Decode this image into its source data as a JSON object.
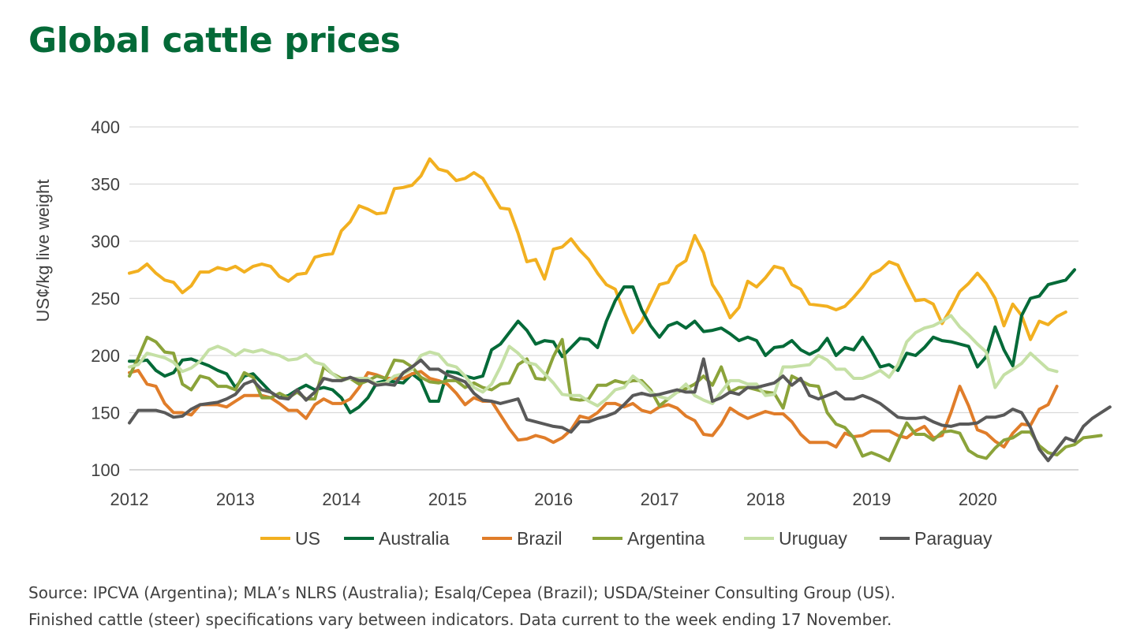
{
  "page": {
    "title": "Global cattle prices"
  },
  "source": {
    "line1": "Source: IPCVA (Argentina); MLA’s NLRS (Australia); Esalq/Cepea (Brazil); USDA/Steiner Consulting Group (US).",
    "line2": "Finished cattle (steer) specifications vary between indicators. Data current to the week ending 17 November."
  },
  "chart_data": {
    "type": "line",
    "title": "Global cattle prices",
    "xlabel": "",
    "ylabel": "US¢/kg live weight",
    "ylim": [
      100,
      400
    ],
    "xlim": [
      2012,
      2020.95
    ],
    "yticks": [
      100,
      150,
      200,
      250,
      300,
      350,
      400
    ],
    "xticks": [
      2012,
      2013,
      2014,
      2015,
      2016,
      2017,
      2018,
      2019,
      2020
    ],
    "grid": "horizontal",
    "legend_position": "bottom",
    "x_step": 0.0833,
    "series": [
      {
        "name": "US",
        "color": "#f2b020",
        "values": [
          272,
          274,
          280,
          272,
          266,
          264,
          255,
          261,
          273,
          273,
          277,
          275,
          278,
          273,
          278,
          280,
          278,
          269,
          265,
          271,
          272,
          286,
          288,
          289,
          309,
          317,
          331,
          328,
          324,
          325,
          346,
          347,
          349,
          357,
          372,
          363,
          361,
          353,
          355,
          360,
          355,
          342,
          329,
          328,
          307,
          282,
          284,
          267,
          293,
          295,
          302,
          292,
          284,
          272,
          262,
          258,
          238,
          220,
          230,
          246,
          262,
          264,
          278,
          283,
          305,
          290,
          262,
          250,
          233,
          242,
          265,
          260,
          268,
          278,
          276,
          262,
          258,
          245,
          244,
          243,
          240,
          243,
          251,
          260,
          271,
          275,
          282,
          279,
          263,
          248,
          249,
          245,
          228,
          241,
          256,
          263,
          272,
          263,
          250,
          226,
          245,
          235,
          214,
          230,
          227,
          234,
          238
        ]
      },
      {
        "name": "Australia",
        "color": "#046a38",
        "values": [
          195,
          195,
          196,
          187,
          182,
          185,
          196,
          197,
          194,
          191,
          187,
          184,
          172,
          182,
          184,
          176,
          168,
          163,
          165,
          170,
          174,
          170,
          172,
          170,
          163,
          150,
          155,
          163,
          176,
          178,
          177,
          176,
          184,
          178,
          160,
          160,
          186,
          185,
          182,
          180,
          182,
          205,
          210,
          220,
          230,
          222,
          210,
          213,
          212,
          199,
          207,
          215,
          214,
          207,
          230,
          248,
          260,
          260,
          240,
          226,
          216,
          226,
          229,
          224,
          230,
          221,
          222,
          224,
          219,
          213,
          216,
          213,
          200,
          207,
          208,
          213,
          205,
          201,
          205,
          215,
          200,
          207,
          205,
          216,
          204,
          190,
          192,
          187,
          202,
          200,
          207,
          216,
          213,
          212,
          210,
          208,
          190,
          199,
          225,
          205,
          191,
          235,
          250,
          252,
          262,
          264,
          266,
          275
        ]
      },
      {
        "name": "Brazil",
        "color": "#e07d2a",
        "values": [
          185,
          187,
          175,
          173,
          158,
          150,
          150,
          148,
          157,
          157,
          157,
          155,
          160,
          165,
          165,
          165,
          163,
          158,
          152,
          152,
          145,
          157,
          162,
          158,
          158,
          162,
          172,
          185,
          183,
          180,
          180,
          180,
          184,
          186,
          180,
          178,
          175,
          167,
          157,
          163,
          160,
          160,
          148,
          136,
          126,
          127,
          130,
          128,
          124,
          128,
          135,
          147,
          145,
          150,
          158,
          158,
          155,
          158,
          152,
          150,
          155,
          157,
          154,
          147,
          143,
          131,
          130,
          140,
          154,
          149,
          145,
          148,
          151,
          149,
          149,
          142,
          131,
          124,
          124,
          124,
          120,
          132,
          129,
          130,
          134,
          134,
          134,
          130,
          128,
          134,
          138,
          128,
          130,
          150,
          173,
          156,
          135,
          132,
          125,
          120,
          132,
          140,
          139,
          153,
          157,
          173
        ]
      },
      {
        "name": "Argentina",
        "color": "#8ba33a",
        "values": [
          182,
          198,
          216,
          212,
          203,
          202,
          175,
          170,
          182,
          180,
          173,
          173,
          170,
          185,
          181,
          163,
          163,
          167,
          163,
          168,
          162,
          162,
          190,
          184,
          180,
          180,
          175,
          178,
          182,
          180,
          196,
          195,
          190,
          181,
          177,
          176,
          178,
          178,
          172,
          176,
          172,
          170,
          175,
          176,
          192,
          197,
          180,
          179,
          199,
          214,
          162,
          161,
          162,
          174,
          174,
          178,
          176,
          178,
          178,
          170,
          156,
          162,
          168,
          171,
          175,
          182,
          174,
          190,
          168,
          172,
          172,
          170,
          168,
          167,
          154,
          182,
          178,
          174,
          173,
          150,
          140,
          137,
          128,
          112,
          115,
          112,
          108,
          125,
          141,
          131,
          131,
          126,
          133,
          134,
          132,
          117,
          112,
          110,
          119,
          126,
          128,
          133,
          133,
          121,
          115,
          113,
          120,
          122,
          128,
          129,
          130
        ]
      },
      {
        "name": "Uruguay",
        "color": "#c5e0a5",
        "values": [
          190,
          192,
          202,
          200,
          198,
          194,
          186,
          189,
          195,
          205,
          208,
          205,
          200,
          205,
          203,
          205,
          202,
          200,
          196,
          197,
          201,
          194,
          192,
          184,
          178,
          180,
          180,
          180,
          175,
          176,
          182,
          184,
          188,
          200,
          203,
          201,
          192,
          190,
          182,
          172,
          168,
          175,
          190,
          208,
          202,
          194,
          192,
          184,
          176,
          166,
          165,
          165,
          160,
          156,
          162,
          170,
          172,
          182,
          176,
          168,
          164,
          162,
          168,
          175,
          165,
          161,
          158,
          168,
          178,
          178,
          175,
          175,
          165,
          166,
          190,
          190,
          191,
          192,
          200,
          196,
          188,
          188,
          180,
          180,
          183,
          187,
          181,
          192,
          212,
          220,
          224,
          226,
          230,
          235,
          225,
          218,
          210,
          203,
          172,
          183,
          188,
          193,
          202,
          195,
          188,
          186
        ]
      },
      {
        "name": "Paraguay",
        "color": "#595959",
        "values": [
          141,
          152,
          152,
          152,
          150,
          146,
          147,
          153,
          157,
          158,
          159,
          162,
          166,
          175,
          178,
          170,
          168,
          163,
          162,
          170,
          161,
          168,
          180,
          178,
          178,
          181,
          178,
          178,
          174,
          175,
          174,
          185,
          190,
          196,
          188,
          188,
          183,
          180,
          177,
          167,
          161,
          160,
          158,
          160,
          162,
          144,
          142,
          140,
          138,
          137,
          133,
          142,
          142,
          145,
          147,
          150,
          157,
          165,
          167,
          165,
          166,
          168,
          170,
          168,
          168,
          197,
          160,
          163,
          168,
          166,
          172,
          172,
          174,
          176,
          182,
          174,
          180,
          165,
          162,
          165,
          168,
          162,
          162,
          165,
          162,
          158,
          152,
          146,
          145,
          145,
          146,
          142,
          139,
          138,
          140,
          140,
          141,
          146,
          146,
          148,
          153,
          150,
          137,
          118,
          108,
          118,
          128,
          125,
          138,
          145,
          150,
          155
        ]
      }
    ]
  }
}
